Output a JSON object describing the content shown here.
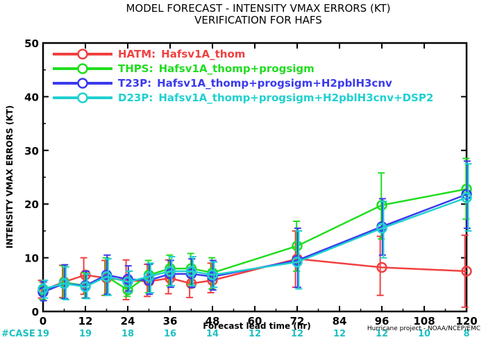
{
  "chart_data": {
    "type": "line",
    "title": "MODEL FORECAST - INTENSITY VMAX ERRORS (KT)",
    "subtitle": "VERIFICATION FOR HAFS",
    "xlabel": "Forecast lead time (hr)",
    "ylabel": "INTENSITY VMAX ERRORS (KT)",
    "xlim": [
      0,
      120
    ],
    "ylim": [
      0,
      50
    ],
    "xticks": [
      "0",
      "12",
      "24",
      "36",
      "48",
      "60",
      "72",
      "84",
      "96",
      "108",
      "120"
    ],
    "yticks": [
      "0",
      "10",
      "20",
      "30",
      "40",
      "50"
    ],
    "grid": false,
    "legend_position": "top-left",
    "case_label": "#CASE",
    "case_counts": [
      {
        "x": 0,
        "value": "19"
      },
      {
        "x": 12,
        "value": "19"
      },
      {
        "x": 24,
        "value": "18"
      },
      {
        "x": 36,
        "value": "16"
      },
      {
        "x": 48,
        "value": "14"
      },
      {
        "x": 60,
        "value": "12"
      },
      {
        "x": 72,
        "value": "12"
      },
      {
        "x": 84,
        "value": "12"
      },
      {
        "x": 96,
        "value": "12"
      },
      {
        "x": 108,
        "value": "10"
      },
      {
        "x": 120,
        "value": "8"
      }
    ],
    "credit": "Hurricane project - NOAA/NCEP/EMC",
    "series": [
      {
        "name": "HATM:",
        "desc": "Hafsv1A_thom",
        "color": "#f04040",
        "x": [
          0,
          6,
          12,
          18,
          24,
          30,
          36,
          42,
          48,
          72,
          96,
          120
        ],
        "y": [
          4.0,
          5.5,
          6.8,
          6.2,
          5.8,
          5.6,
          6.2,
          5.2,
          5.8,
          9.8,
          8.2,
          7.5
        ],
        "low": [
          2.5,
          2.6,
          3.2,
          3.0,
          2.2,
          2.8,
          3.3,
          2.6,
          3.5,
          4.5,
          3.0,
          0.8
        ],
        "high": [
          5.8,
          8.6,
          10.0,
          9.5,
          9.6,
          8.8,
          9.6,
          8.2,
          9.0,
          15.0,
          14.0,
          14.2
        ]
      },
      {
        "name": "THPS:",
        "desc": "Hafsv1A_thomp+progsigm",
        "color": "#20dd20",
        "x": [
          0,
          6,
          12,
          18,
          24,
          30,
          36,
          42,
          48,
          72,
          96,
          120
        ],
        "y": [
          3.8,
          5.4,
          4.8,
          6.5,
          4.0,
          6.8,
          8.0,
          8.0,
          7.2,
          12.2,
          19.8,
          22.8
        ],
        "low": [
          2.2,
          2.4,
          2.5,
          3.0,
          2.8,
          3.5,
          4.8,
          5.0,
          4.2,
          7.5,
          13.5,
          17.2
        ],
        "high": [
          5.5,
          8.5,
          7.2,
          10.0,
          5.5,
          9.5,
          10.5,
          10.8,
          10.0,
          16.8,
          25.8,
          28.5
        ]
      },
      {
        "name": "T23P:",
        "desc": "Hafsv1A_thomp+progsigm+H2pblH3cnv",
        "color": "#3a3aee",
        "x": [
          0,
          6,
          12,
          18,
          24,
          30,
          36,
          42,
          48,
          72,
          96,
          120
        ],
        "y": [
          3.6,
          5.2,
          4.8,
          6.8,
          6.0,
          5.8,
          7.0,
          7.0,
          6.5,
          9.5,
          15.8,
          21.8
        ],
        "low": [
          2.0,
          2.4,
          2.5,
          3.2,
          3.8,
          3.2,
          4.5,
          4.5,
          4.0,
          4.5,
          10.5,
          15.5
        ],
        "high": [
          5.5,
          8.7,
          7.5,
          10.5,
          8.5,
          8.8,
          9.5,
          9.8,
          9.5,
          15.5,
          21.0,
          28.0
        ]
      },
      {
        "name": "D23P:",
        "desc": "Hafsv1A_thomp+progsigm+H2pblH3cnv+DSP2",
        "color": "#20d0d0",
        "x": [
          0,
          6,
          12,
          18,
          24,
          30,
          36,
          42,
          48,
          72,
          96,
          120
        ],
        "y": [
          4.2,
          5.2,
          4.6,
          6.5,
          5.5,
          6.5,
          7.5,
          7.5,
          6.8,
          9.2,
          15.5,
          21.2
        ],
        "low": [
          2.5,
          2.2,
          2.4,
          3.0,
          3.5,
          3.5,
          4.8,
          4.8,
          4.5,
          4.2,
          10.0,
          15.0
        ],
        "high": [
          5.8,
          8.3,
          7.0,
          9.8,
          7.5,
          9.0,
          10.2,
          10.2,
          9.2,
          15.0,
          20.5,
          27.5
        ]
      }
    ]
  }
}
